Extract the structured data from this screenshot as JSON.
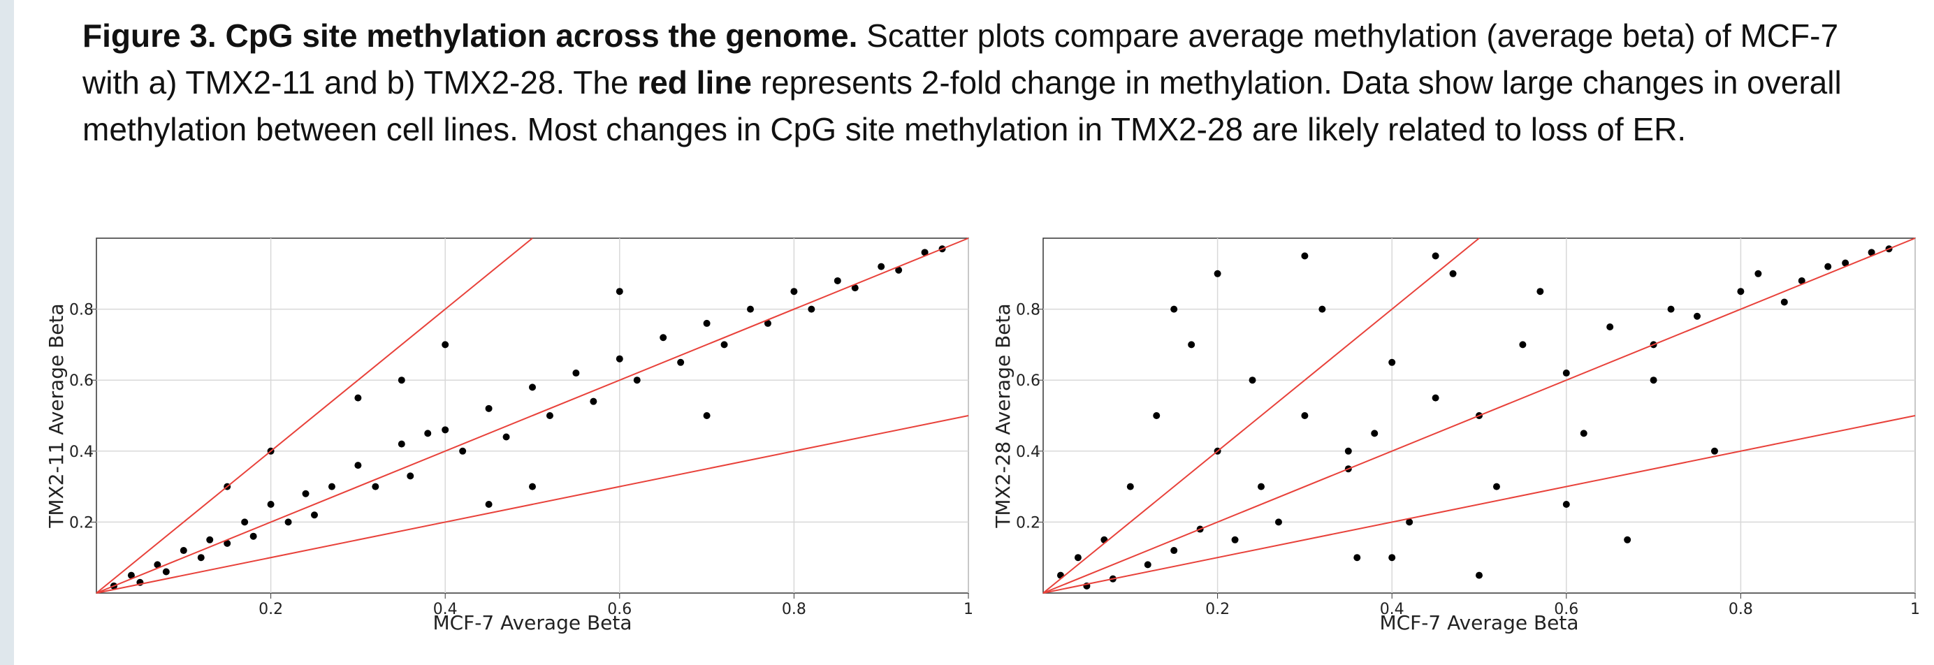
{
  "caption": {
    "bold_lead": "Figure 3. CpG site methylation across the genome.",
    "text_1": " Scatter plots compare average methylation (average beta) of MCF-7 with a) TMX2-11 and b) TMX2-28. The ",
    "bold_mid": "red line",
    "text_2": " represents 2-fold change in methylation. Data show large changes in overall methylation between cell lines. Most changes in CpG site methylation in TMX2-28 are likely related to loss of ER."
  },
  "chart_data": [
    {
      "type": "scatter",
      "x_label": "MCF-7 Average Beta",
      "y_label": "TMX2-11 Average Beta",
      "color": "#000000",
      "grid": true,
      "xlim": [
        0,
        1
      ],
      "ylim": [
        0,
        1
      ],
      "xticks": [
        0.2,
        0.4,
        0.6,
        0.8,
        1
      ],
      "yticks": [
        0.2,
        0.4,
        0.6,
        0.8
      ],
      "x": [
        0.02,
        0.04,
        0.05,
        0.07,
        0.08,
        0.1,
        0.12,
        0.13,
        0.15,
        0.17,
        0.18,
        0.2,
        0.22,
        0.24,
        0.25,
        0.27,
        0.3,
        0.32,
        0.35,
        0.36,
        0.38,
        0.4,
        0.42,
        0.45,
        0.47,
        0.5,
        0.52,
        0.55,
        0.57,
        0.6,
        0.62,
        0.65,
        0.67,
        0.7,
        0.72,
        0.75,
        0.77,
        0.8,
        0.82,
        0.85,
        0.87,
        0.9,
        0.92,
        0.95,
        0.97,
        0.3,
        0.4,
        0.5,
        0.2,
        0.6,
        0.15,
        0.7,
        0.45,
        0.35
      ],
      "values": [
        0.02,
        0.05,
        0.03,
        0.08,
        0.06,
        0.12,
        0.1,
        0.15,
        0.14,
        0.2,
        0.16,
        0.25,
        0.2,
        0.28,
        0.22,
        0.3,
        0.36,
        0.3,
        0.42,
        0.33,
        0.45,
        0.46,
        0.4,
        0.52,
        0.44,
        0.58,
        0.5,
        0.62,
        0.54,
        0.66,
        0.6,
        0.72,
        0.65,
        0.76,
        0.7,
        0.8,
        0.76,
        0.85,
        0.8,
        0.88,
        0.86,
        0.92,
        0.91,
        0.96,
        0.97,
        0.55,
        0.7,
        0.3,
        0.4,
        0.85,
        0.3,
        0.5,
        0.25,
        0.6
      ],
      "lines": [
        {
          "color": "#e8413a",
          "x": [
            0,
            1
          ],
          "y": [
            0,
            1
          ]
        },
        {
          "color": "#e8413a",
          "x": [
            0,
            0.5
          ],
          "y": [
            0,
            1
          ]
        },
        {
          "color": "#e8413a",
          "x": [
            0,
            1
          ],
          "y": [
            0,
            0.5
          ]
        }
      ]
    },
    {
      "type": "scatter",
      "x_label": "MCF-7 Average Beta",
      "y_label": "TMX2-28 Average Beta",
      "color": "#000000",
      "grid": true,
      "xlim": [
        0,
        1
      ],
      "ylim": [
        0,
        1
      ],
      "xticks": [
        0.2,
        0.4,
        0.6,
        0.8,
        1
      ],
      "yticks": [
        0.2,
        0.4,
        0.6,
        0.8
      ],
      "x": [
        0.02,
        0.04,
        0.05,
        0.07,
        0.08,
        0.1,
        0.12,
        0.13,
        0.15,
        0.17,
        0.18,
        0.2,
        0.22,
        0.24,
        0.25,
        0.27,
        0.3,
        0.32,
        0.35,
        0.36,
        0.38,
        0.4,
        0.42,
        0.45,
        0.47,
        0.5,
        0.52,
        0.55,
        0.57,
        0.6,
        0.62,
        0.65,
        0.67,
        0.7,
        0.72,
        0.75,
        0.77,
        0.8,
        0.82,
        0.85,
        0.87,
        0.9,
        0.92,
        0.95,
        0.97,
        0.3,
        0.4,
        0.5,
        0.2,
        0.6,
        0.15,
        0.7,
        0.45,
        0.35
      ],
      "values": [
        0.05,
        0.1,
        0.02,
        0.15,
        0.04,
        0.3,
        0.08,
        0.5,
        0.12,
        0.7,
        0.18,
        0.9,
        0.15,
        0.6,
        0.3,
        0.2,
        0.5,
        0.8,
        0.35,
        0.1,
        0.45,
        0.65,
        0.2,
        0.55,
        0.9,
        0.5,
        0.3,
        0.7,
        0.85,
        0.62,
        0.45,
        0.75,
        0.15,
        0.7,
        0.8,
        0.78,
        0.4,
        0.85,
        0.9,
        0.82,
        0.88,
        0.92,
        0.93,
        0.96,
        0.97,
        0.95,
        0.1,
        0.05,
        0.4,
        0.25,
        0.8,
        0.6,
        0.95,
        0.4
      ],
      "lines": [
        {
          "color": "#e8413a",
          "x": [
            0,
            1
          ],
          "y": [
            0,
            1
          ]
        },
        {
          "color": "#e8413a",
          "x": [
            0,
            0.5
          ],
          "y": [
            0,
            1
          ]
        },
        {
          "color": "#e8413a",
          "x": [
            0,
            1
          ],
          "y": [
            0,
            0.5
          ]
        }
      ]
    }
  ]
}
